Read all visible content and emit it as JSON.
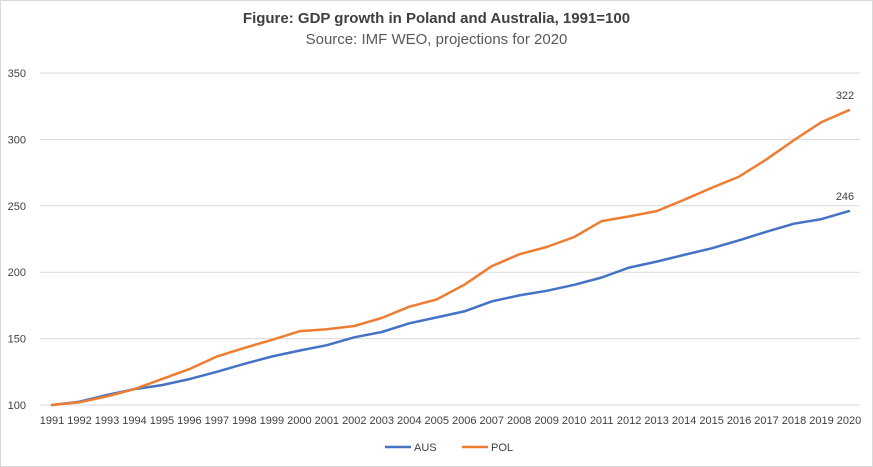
{
  "chart_data": {
    "type": "line",
    "title": "Figure: GDP growth in Poland and Australia, 1991=100",
    "subtitle": "Source: IMF WEO, projections for 2020",
    "xlabel": "",
    "ylabel": "",
    "ylim": [
      100,
      350
    ],
    "yticks": [
      "100",
      "150",
      "200",
      "250",
      "300",
      "350"
    ],
    "grid": true,
    "legend": "bottom",
    "categories": [
      "1991",
      "1992",
      "1993",
      "1994",
      "1995",
      "1996",
      "1997",
      "1998",
      "1999",
      "2000",
      "2001",
      "2002",
      "2003",
      "2004",
      "2005",
      "2006",
      "2007",
      "2008",
      "2009",
      "2010",
      "2011",
      "2012",
      "2013",
      "2014",
      "2015",
      "2016",
      "2017",
      "2018",
      "2019",
      "2020"
    ],
    "series": [
      {
        "name": "AUS",
        "color": "#4472c4",
        "values": [
          100,
          102.5,
          107.5,
          112,
          115,
          119.5,
          125,
          131,
          136.5,
          141,
          145,
          151,
          155,
          161.5,
          166,
          170.5,
          178,
          182.5,
          186,
          190.5,
          196,
          203.5,
          208,
          213,
          218,
          224,
          230.5,
          236.5,
          240,
          246
        ],
        "end_label": "246"
      },
      {
        "name": "POL",
        "color": "#ed7d31",
        "values": [
          100,
          102,
          106.5,
          112,
          119.5,
          127,
          136.5,
          143,
          149,
          155.5,
          157,
          159.5,
          165.5,
          174,
          179.5,
          190.5,
          204.5,
          213.5,
          219,
          226.5,
          238.5,
          242,
          246,
          254.5,
          263.5,
          272,
          285,
          299.5,
          313,
          322
        ],
        "end_label": "322"
      }
    ]
  }
}
